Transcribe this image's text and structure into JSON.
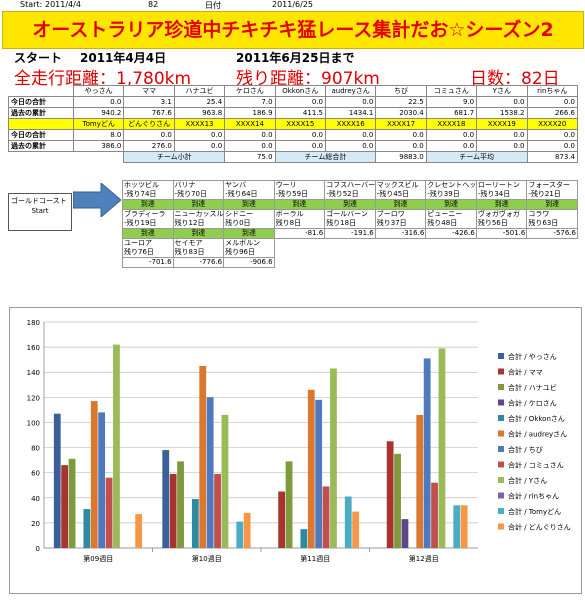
{
  "top_line": {
    "start_label": "Start:",
    "start_date": "2011/4/4",
    "day_count": "82",
    "date_label": "日付",
    "date": "2011/6/25"
  },
  "banner_title": "オーストラリア珍道中チキチキ猛レース集計だお☆シーズン2",
  "dates": {
    "start_label": "スタート",
    "start_date": "2011年4月4日",
    "end_date": "2011年6月25日まで"
  },
  "totals": {
    "distance_label": "全走行距離：1,780km",
    "remaining_label": "残り距離：907km",
    "days_label": "日数：82日"
  },
  "table1": {
    "headers": [
      "やっさん",
      "ママ",
      "ハナユビ",
      "ケロさん",
      "Okkonさん",
      "audreyさん",
      "ちび",
      "コミュさん",
      "Yさん",
      "rinちゃん"
    ],
    "rows": [
      {
        "label": "今日の合計",
        "values": [
          "0.0",
          "3.1",
          "25.4",
          "7.0",
          "0.0",
          "0.0",
          "22.5",
          "9.0",
          "0.0",
          "0.0"
        ]
      },
      {
        "label": "過去の累計",
        "values": [
          "940.2",
          "767.6",
          "963.8",
          "186.9",
          "411.5",
          "1434.1",
          "2030.4",
          "681.7",
          "1538.2",
          "266.6"
        ]
      }
    ]
  },
  "table2": {
    "headers": [
      "Tomyどん",
      "どんぐりさん",
      "XXXX13",
      "XXXX14",
      "XXXX15",
      "XXXX16",
      "XXXX17",
      "XXXX18",
      "XXXX19",
      "XXXX20"
    ],
    "rows": [
      {
        "label": "今日の合計",
        "values": [
          "8.0",
          "0.0",
          "0.0",
          "0.0",
          "0.0",
          "0.0",
          "0.0",
          "0.0",
          "0.0",
          "0.0"
        ]
      },
      {
        "label": "過去の累計",
        "values": [
          "386.0",
          "276.0",
          "0.0",
          "0.0",
          "0.0",
          "0.0",
          "0.0",
          "0.0",
          "0.0",
          "0.0"
        ]
      }
    ]
  },
  "team": {
    "subtotal_label": "チーム小計",
    "subtotal": "75.0",
    "total_label": "チーム総合計",
    "total": "9883.0",
    "avg_label": "チーム平均",
    "avg": "873.4"
  },
  "course": {
    "line1": "ゴールドコースト",
    "line2": "Start"
  },
  "route": [
    [
      {
        "name": "ホッツビル",
        "remain": "-残り74日",
        "status": "到達"
      },
      {
        "name": "バリナ",
        "remain": "-残り70日",
        "status": "到達"
      },
      {
        "name": "ヤンバ",
        "remain": "-残り64日",
        "status": "到達"
      },
      {
        "name": "ウーリ",
        "remain": "-残り59日",
        "status": "到達"
      },
      {
        "name": "コフスハーバー",
        "remain": "-残り52日",
        "status": "到達"
      },
      {
        "name": "マックスビル",
        "remain": "-残り45日",
        "status": "到達"
      },
      {
        "name": "クレセントヘッド",
        "remain": "-残り39日",
        "status": "到達"
      },
      {
        "name": "ローリートン",
        "remain": "-残り34日",
        "status": "到達"
      },
      {
        "name": "フォースター",
        "remain": "-残り21日",
        "status": "到達"
      }
    ],
    [
      {
        "name": "ブラディーラ",
        "remain": "-残り19日",
        "status": "到達"
      },
      {
        "name": "ニューカッスル",
        "remain": "残り12日",
        "status": "到達"
      },
      {
        "name": "シドニー",
        "remain": "残り0日",
        "status": "到達"
      },
      {
        "name": "ボーラル",
        "remain": "残り8日",
        "dist": "-81.6"
      },
      {
        "name": "ゴールバーン",
        "remain": "残り18日",
        "dist": "-191.6"
      },
      {
        "name": "ブーロワ",
        "remain": "残り37日",
        "dist": "-316.6"
      },
      {
        "name": "ピューニー",
        "remain": "残り48日",
        "dist": "-426.6"
      },
      {
        "name": "ヴォガヴォガ",
        "remain": "残り56日",
        "dist": "-501.6"
      },
      {
        "name": "コラワ",
        "remain": "残り63日",
        "dist": "-576.6"
      }
    ],
    [
      {
        "name": "ユーロア",
        "remain": "残り76日",
        "dist": "-701.6"
      },
      {
        "name": "セイモア",
        "remain": "残り83日",
        "dist": "-776.6"
      },
      {
        "name": "メルボルン",
        "remain": "残り96日",
        "dist": "-906.6"
      }
    ]
  ],
  "chart_data": {
    "type": "bar",
    "categories": [
      "第09週目",
      "第10週目",
      "第11週目",
      "第12週目"
    ],
    "ylim": [
      0,
      180
    ],
    "yticks": [
      0,
      20,
      40,
      60,
      80,
      100,
      120,
      140,
      160,
      180
    ],
    "legend_position": "right",
    "series": [
      {
        "name": "合計 / やっさん",
        "color": "#3b5f9a",
        "values": [
          107,
          78,
          0,
          0
        ]
      },
      {
        "name": "合計 / ママ",
        "color": "#a8342f",
        "values": [
          66,
          59,
          45,
          85
        ]
      },
      {
        "name": "合計 / ハナユビ",
        "color": "#7f9a3c",
        "values": [
          71,
          69,
          69,
          75
        ]
      },
      {
        "name": "合計 / ケロさん",
        "color": "#5e4787",
        "values": [
          0,
          0,
          0,
          23
        ]
      },
      {
        "name": "合計 / Okkonさん",
        "color": "#2e8aa3",
        "values": [
          31,
          39,
          15,
          0
        ]
      },
      {
        "name": "合計 / audreyさん",
        "color": "#d9782e",
        "values": [
          117,
          145,
          126,
          106
        ]
      },
      {
        "name": "合計 / ちび",
        "color": "#4f79bf",
        "values": [
          108,
          120,
          118,
          151
        ]
      },
      {
        "name": "合計 / コミュさん",
        "color": "#c0504d",
        "values": [
          56,
          59,
          49,
          52
        ]
      },
      {
        "name": "合計 / Yさん",
        "color": "#9bbb59",
        "values": [
          162,
          106,
          143,
          159
        ]
      },
      {
        "name": "合計 / rinちゃん",
        "color": "#8064a2",
        "values": [
          0,
          0,
          0,
          0
        ]
      },
      {
        "name": "合計 / Tomyどん",
        "color": "#4bacc6",
        "values": [
          0,
          21,
          41,
          34
        ]
      },
      {
        "name": "合計 / どんぐりさん",
        "color": "#f79646",
        "values": [
          27,
          28,
          29,
          34
        ]
      }
    ]
  }
}
